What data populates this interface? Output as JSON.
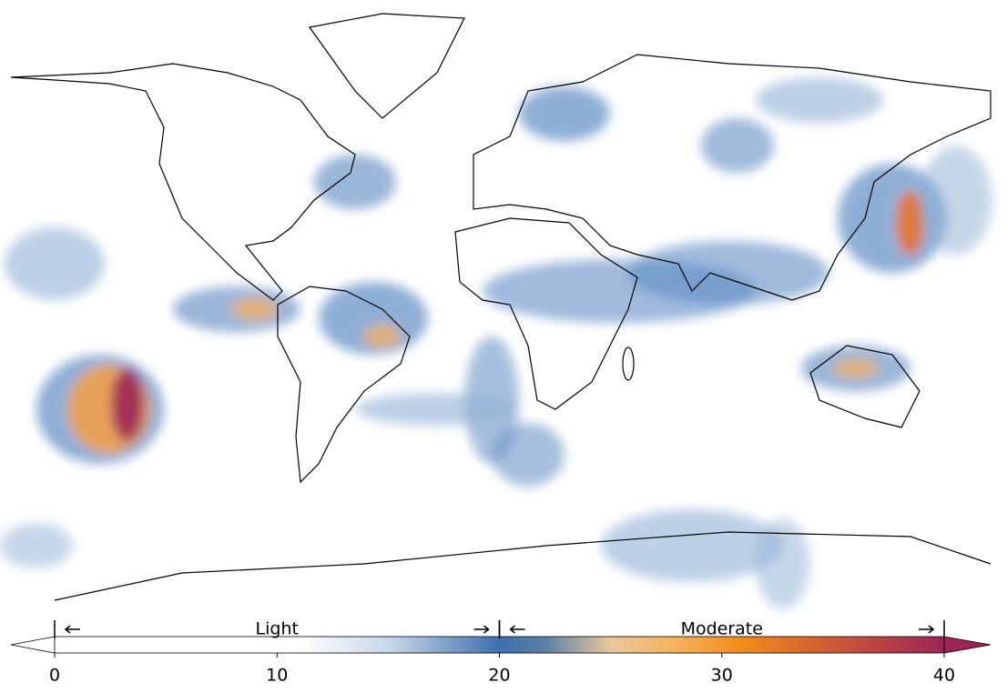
{
  "colorbar": {
    "lim": [
      0,
      40
    ],
    "ticks": [
      0,
      10,
      20,
      30,
      40
    ],
    "categories": [
      {
        "label": "Light",
        "range": [
          0,
          20
        ]
      },
      {
        "label": "Moderate",
        "range": [
          20,
          40
        ]
      }
    ],
    "colormap": [
      {
        "value": 0,
        "color": "#ffffff"
      },
      {
        "value": 11,
        "color": "#ffffff"
      },
      {
        "value": 15,
        "color": "#c9d8ea"
      },
      {
        "value": 20,
        "color": "#3d6fae"
      },
      {
        "value": 22,
        "color": "#5a7fa8"
      },
      {
        "value": 25,
        "color": "#e9c79b"
      },
      {
        "value": 28,
        "color": "#f5b15c"
      },
      {
        "value": 31,
        "color": "#f28a1c"
      },
      {
        "value": 35,
        "color": "#cc5a35"
      },
      {
        "value": 40,
        "color": "#9c2558"
      }
    ]
  }
}
